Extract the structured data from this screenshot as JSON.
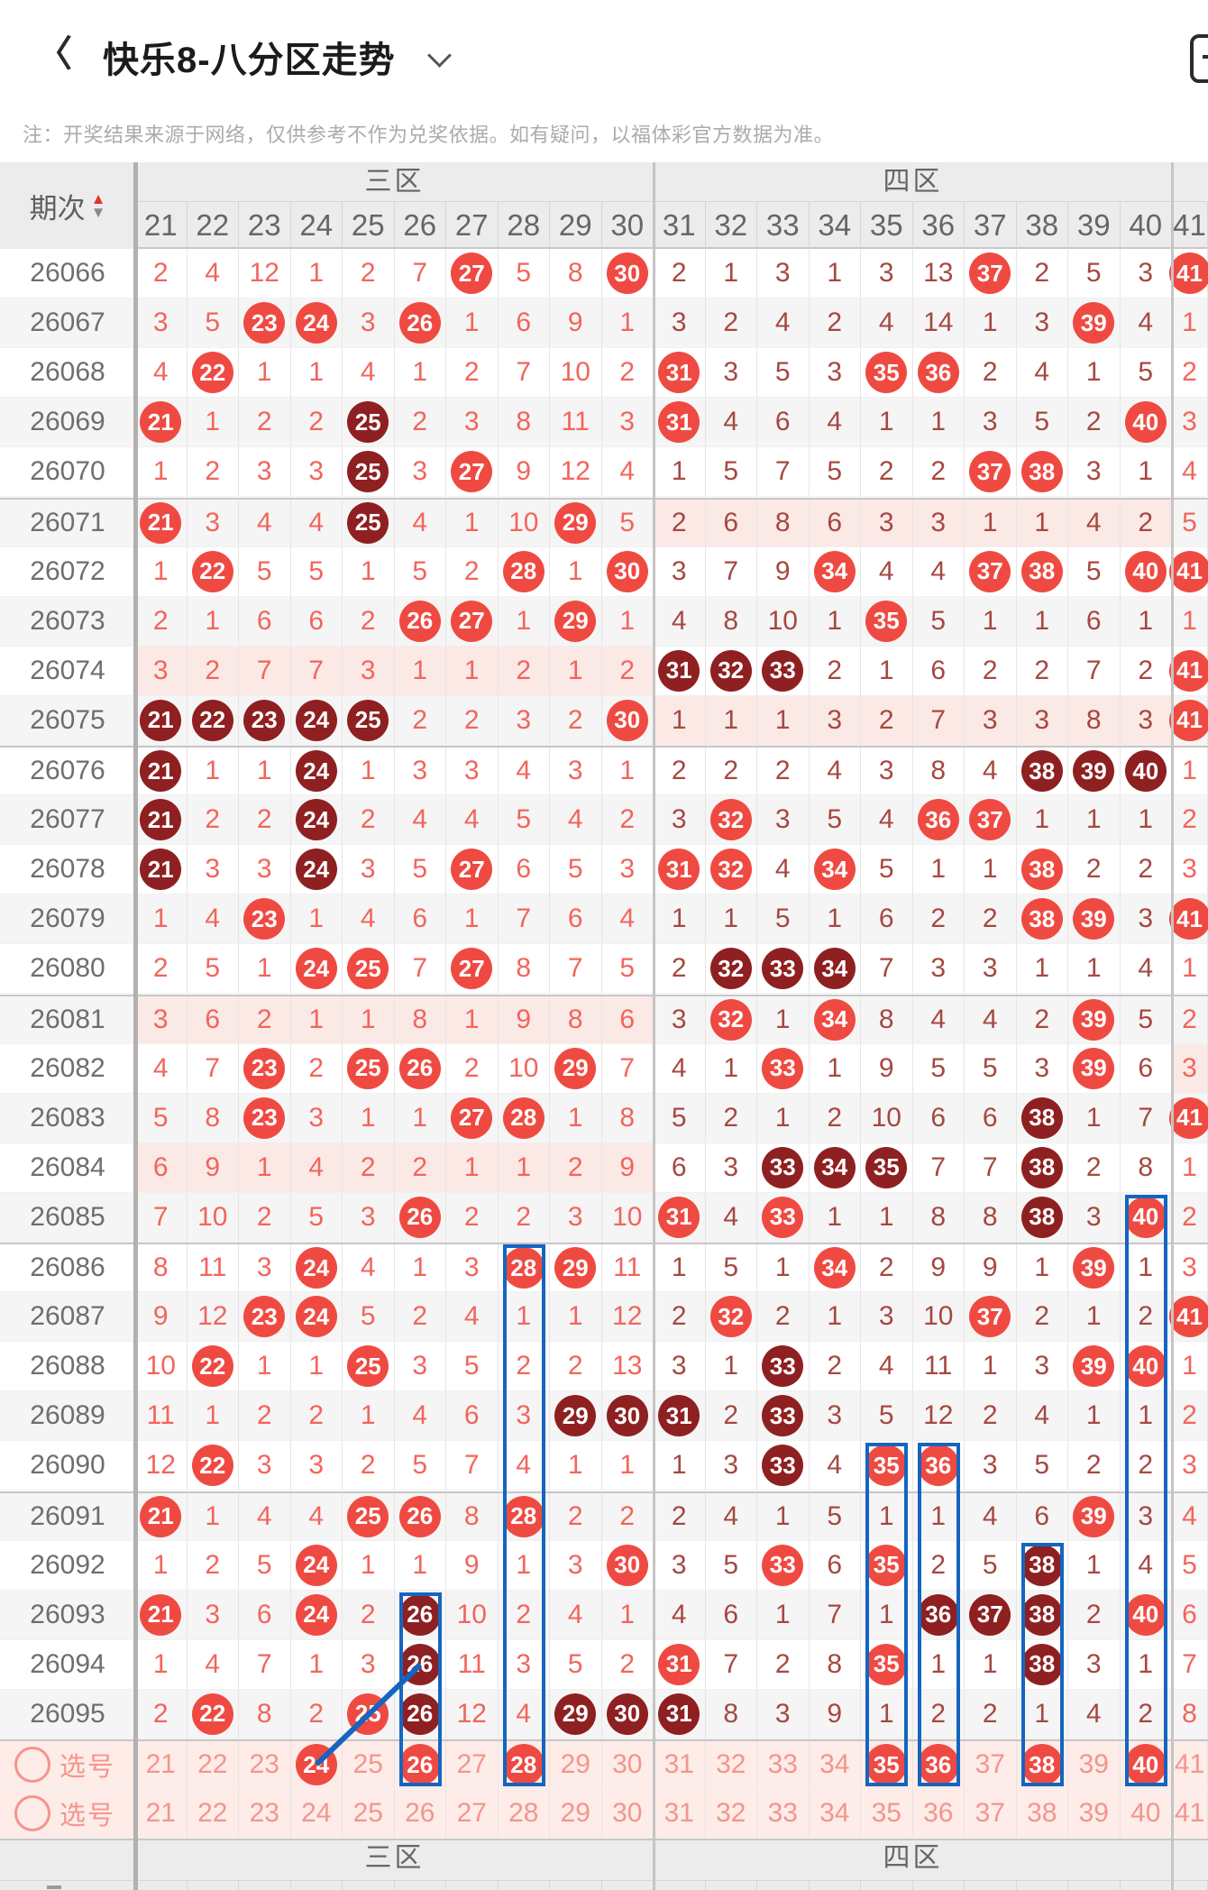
{
  "header": {
    "title": "快乐8-八分区走势",
    "back_icon": "chevron-left",
    "dropdown_icon": "chevron-down",
    "toolbar_icon": "rounded-square-list"
  },
  "note": "注：开奖结果来源于网络，仅供参考不作为兑奖依据。如有疑问，以福体彩官方数据为准。",
  "table": {
    "period_label": "期次",
    "sort_icons": {
      "asc": "▲",
      "desc": "▼"
    },
    "zones": [
      {
        "label": "三区",
        "start": 21,
        "end": 30
      },
      {
        "label": "四区",
        "start": 31,
        "end": 40
      },
      {
        "label": "",
        "start": 41,
        "end": 41
      }
    ],
    "columns": [
      21,
      22,
      23,
      24,
      25,
      26,
      27,
      28,
      29,
      30,
      31,
      32,
      33,
      34,
      35,
      36,
      37,
      38,
      39,
      40,
      41
    ],
    "footer_placeholder": "-",
    "rows": [
      {
        "p": "26066",
        "c": [
          "2",
          "4",
          "12",
          "1",
          "2",
          "7",
          "27h",
          "5",
          "8",
          "30h",
          "2",
          "1",
          "3",
          "1",
          "3",
          "13",
          "37h",
          "2",
          "5",
          "3",
          "41h"
        ]
      },
      {
        "p": "26067",
        "c": [
          "3",
          "5",
          "23h",
          "24h",
          "3",
          "26h",
          "1",
          "6",
          "9",
          "1",
          "3",
          "2",
          "4",
          "2",
          "4",
          "14",
          "1",
          "3",
          "39h",
          "4",
          "1"
        ]
      },
      {
        "p": "26068",
        "c": [
          "4",
          "22h",
          "1",
          "1",
          "4",
          "1",
          "2",
          "7",
          "10",
          "2",
          "31h",
          "3",
          "5",
          "3",
          "35h",
          "36h",
          "2",
          "4",
          "1",
          "5",
          "2"
        ]
      },
      {
        "p": "26069",
        "c": [
          "21h",
          "1",
          "2",
          "2",
          "25d",
          "2",
          "3",
          "8",
          "11",
          "3",
          "31h",
          "4",
          "6",
          "4",
          "1",
          "1",
          "3",
          "5",
          "2",
          "40h",
          "3"
        ]
      },
      {
        "p": "26070",
        "c": [
          "1",
          "2",
          "3",
          "3",
          "25d",
          "3",
          "27h",
          "9",
          "12",
          "4",
          "1",
          "5",
          "7",
          "5",
          "2",
          "2",
          "37h",
          "38h",
          "3",
          "1",
          "4"
        ]
      },
      {
        "p": "26071",
        "t4": true,
        "c": [
          "21h",
          "3",
          "4",
          "4",
          "25d",
          "4",
          "1",
          "10",
          "29h",
          "5",
          "2",
          "6",
          "8",
          "6",
          "3",
          "3",
          "1",
          "1",
          "4",
          "2",
          "5"
        ]
      },
      {
        "p": "26072",
        "c": [
          "1",
          "22h",
          "5",
          "5",
          "1",
          "5",
          "2",
          "28h",
          "1",
          "30h",
          "3",
          "7",
          "9",
          "34h",
          "4",
          "4",
          "37h",
          "38h",
          "5",
          "40h",
          "41h"
        ]
      },
      {
        "p": "26073",
        "c": [
          "2",
          "1",
          "6",
          "6",
          "2",
          "26h",
          "27h",
          "1",
          "29h",
          "1",
          "4",
          "8",
          "10",
          "1",
          "35h",
          "5",
          "1",
          "1",
          "6",
          "1",
          "1"
        ]
      },
      {
        "p": "26074",
        "t3": true,
        "c": [
          "3",
          "2",
          "7",
          "7",
          "3",
          "1",
          "1",
          "2",
          "1",
          "2",
          "31d",
          "32d",
          "33d",
          "2",
          "1",
          "6",
          "2",
          "2",
          "7",
          "2",
          "41h"
        ]
      },
      {
        "p": "26075",
        "t4": true,
        "c": [
          "21d",
          "22d",
          "23d",
          "24d",
          "25d",
          "2",
          "2",
          "3",
          "2",
          "30h",
          "1",
          "1",
          "1",
          "3",
          "2",
          "7",
          "3",
          "3",
          "8",
          "3",
          "41h"
        ]
      },
      {
        "p": "26076",
        "c": [
          "21d",
          "1",
          "1",
          "24d",
          "1",
          "3",
          "3",
          "4",
          "3",
          "1",
          "2",
          "2",
          "2",
          "4",
          "3",
          "8",
          "4",
          "38d",
          "39d",
          "40d",
          "1"
        ]
      },
      {
        "p": "26077",
        "c": [
          "21d",
          "2",
          "2",
          "24d",
          "2",
          "4",
          "4",
          "5",
          "4",
          "2",
          "3",
          "32h",
          "3",
          "5",
          "4",
          "36h",
          "37h",
          "1",
          "1",
          "1",
          "2"
        ]
      },
      {
        "p": "26078",
        "c": [
          "21d",
          "3",
          "3",
          "24d",
          "3",
          "5",
          "27h",
          "6",
          "5",
          "3",
          "31h",
          "32h",
          "4",
          "34h",
          "5",
          "1",
          "1",
          "38h",
          "2",
          "2",
          "3"
        ]
      },
      {
        "p": "26079",
        "c": [
          "1",
          "4",
          "23h",
          "1",
          "4",
          "6",
          "1",
          "7",
          "6",
          "4",
          "1",
          "1",
          "5",
          "1",
          "6",
          "2",
          "2",
          "38h",
          "39h",
          "3",
          "41h"
        ]
      },
      {
        "p": "26080",
        "c": [
          "2",
          "5",
          "1",
          "24h",
          "25h",
          "7",
          "27h",
          "8",
          "7",
          "5",
          "2",
          "32d",
          "33d",
          "34d",
          "7",
          "3",
          "3",
          "1",
          "1",
          "4",
          "1"
        ]
      },
      {
        "p": "26081",
        "t3": true,
        "c": [
          "3",
          "6",
          "2",
          "1",
          "1",
          "8",
          "1",
          "9",
          "8",
          "6",
          "3",
          "32h",
          "1",
          "34h",
          "8",
          "4",
          "4",
          "2",
          "39h",
          "5",
          "2"
        ]
      },
      {
        "p": "26082",
        "t5": true,
        "c": [
          "4",
          "7",
          "23h",
          "2",
          "25h",
          "26h",
          "2",
          "10",
          "29h",
          "7",
          "4",
          "1",
          "33h",
          "1",
          "9",
          "5",
          "5",
          "3",
          "39h",
          "6",
          "3"
        ]
      },
      {
        "p": "26083",
        "c": [
          "5",
          "8",
          "23h",
          "3",
          "1",
          "1",
          "27h",
          "28h",
          "1",
          "8",
          "5",
          "2",
          "1",
          "2",
          "10",
          "6",
          "6",
          "38d",
          "1",
          "7",
          "41h"
        ]
      },
      {
        "p": "26084",
        "t3": true,
        "c": [
          "6",
          "9",
          "1",
          "4",
          "2",
          "2",
          "1",
          "1",
          "2",
          "9",
          "6",
          "3",
          "33d",
          "34d",
          "35d",
          "7",
          "7",
          "38d",
          "2",
          "8",
          "1"
        ]
      },
      {
        "p": "26085",
        "c": [
          "7",
          "10",
          "2",
          "5",
          "3",
          "26h",
          "2",
          "2",
          "3",
          "10",
          "31h",
          "4",
          "33h",
          "1",
          "1",
          "8",
          "8",
          "38d",
          "3",
          "40h",
          "2"
        ]
      },
      {
        "p": "26086",
        "c": [
          "8",
          "11",
          "3",
          "24h",
          "4",
          "1",
          "3",
          "28h",
          "29h",
          "11",
          "1",
          "5",
          "1",
          "34h",
          "2",
          "9",
          "9",
          "1",
          "39h",
          "1",
          "3"
        ]
      },
      {
        "p": "26087",
        "c": [
          "9",
          "12",
          "23h",
          "24h",
          "5",
          "2",
          "4",
          "1",
          "1",
          "12",
          "2",
          "32h",
          "2",
          "1",
          "3",
          "10",
          "37h",
          "2",
          "1",
          "2",
          "41h"
        ]
      },
      {
        "p": "26088",
        "c": [
          "10",
          "22h",
          "1",
          "1",
          "25h",
          "3",
          "5",
          "2",
          "2",
          "13",
          "3",
          "1",
          "33d",
          "2",
          "4",
          "11",
          "1",
          "3",
          "39h",
          "40h",
          "1"
        ]
      },
      {
        "p": "26089",
        "c": [
          "11",
          "1",
          "2",
          "2",
          "1",
          "4",
          "6",
          "3",
          "29d",
          "30d",
          "31d",
          "2",
          "33d",
          "3",
          "5",
          "12",
          "2",
          "4",
          "1",
          "1",
          "2"
        ]
      },
      {
        "p": "26090",
        "c": [
          "12",
          "22h",
          "3",
          "3",
          "2",
          "5",
          "7",
          "4",
          "1",
          "1",
          "1",
          "3",
          "33d",
          "4",
          "35h",
          "36h",
          "3",
          "5",
          "2",
          "2",
          "3"
        ]
      },
      {
        "p": "26091",
        "c": [
          "21h",
          "1",
          "4",
          "4",
          "25h",
          "26h",
          "8",
          "28h",
          "2",
          "2",
          "2",
          "4",
          "1",
          "5",
          "1",
          "1",
          "4",
          "6",
          "39h",
          "3",
          "4"
        ]
      },
      {
        "p": "26092",
        "c": [
          "1",
          "2",
          "5",
          "24h",
          "1",
          "1",
          "9",
          "1",
          "3",
          "30h",
          "3",
          "5",
          "33h",
          "6",
          "35h",
          "2",
          "5",
          "38d",
          "1",
          "4",
          "5"
        ]
      },
      {
        "p": "26093",
        "c": [
          "21h",
          "3",
          "6",
          "24h",
          "2",
          "26d",
          "10",
          "2",
          "4",
          "1",
          "4",
          "6",
          "1",
          "7",
          "1",
          "36d",
          "37d",
          "38d",
          "2",
          "40h",
          "6"
        ]
      },
      {
        "p": "26094",
        "c": [
          "1",
          "4",
          "7",
          "1",
          "3",
          "26d",
          "11",
          "3",
          "5",
          "2",
          "31h",
          "7",
          "2",
          "8",
          "35h",
          "1",
          "1",
          "38d",
          "3",
          "1",
          "7"
        ]
      },
      {
        "p": "26095",
        "c": [
          "2",
          "22h",
          "8",
          "2",
          "25h",
          "26d",
          "12",
          "4",
          "29d",
          "30d",
          "31d",
          "8",
          "3",
          "9",
          "1",
          "2",
          "2",
          "1",
          "4",
          "2",
          "8"
        ]
      },
      {
        "p": "选号",
        "pick": true,
        "c": [
          "21",
          "22",
          "23",
          "24h",
          "25",
          "26h",
          "27",
          "28h",
          "29",
          "30",
          "31",
          "32",
          "33",
          "34",
          "35h",
          "36h",
          "37",
          "38h",
          "39",
          "40h",
          "41"
        ]
      },
      {
        "p": "选号",
        "pick": true,
        "c": [
          "21",
          "22",
          "23",
          "24",
          "25",
          "26",
          "27",
          "28",
          "29",
          "30",
          "31",
          "32",
          "33",
          "34",
          "35",
          "36",
          "37",
          "38",
          "39",
          "40",
          "41"
        ]
      }
    ],
    "annotations": {
      "boxes": [
        {
          "col": 40,
          "from": 19,
          "to": 30
        },
        {
          "col": 28,
          "from": 20,
          "to": 30
        },
        {
          "col": 35,
          "from": 24,
          "to": 30
        },
        {
          "col": 36,
          "from": 24,
          "to": 30
        },
        {
          "col": 38,
          "from": 26,
          "to": 30
        },
        {
          "col": 26,
          "from": 27,
          "to": 30
        }
      ],
      "line": {
        "from_row": 30,
        "from_col": 24,
        "to_row": 28,
        "to_col": 26
      }
    }
  },
  "colors": {
    "hit": "#ef4a42",
    "hit_dark": "#8e2021",
    "miss_light": "#f2655c",
    "miss_dark": "#a64841",
    "pick_text": "#f4958c",
    "annotation_blue": "#1565c0",
    "tint_pink": "#fbe9e6",
    "pick_row_bg": "#fdece8",
    "header_bg": "#ececec",
    "stripe": "#f6f5f5"
  }
}
